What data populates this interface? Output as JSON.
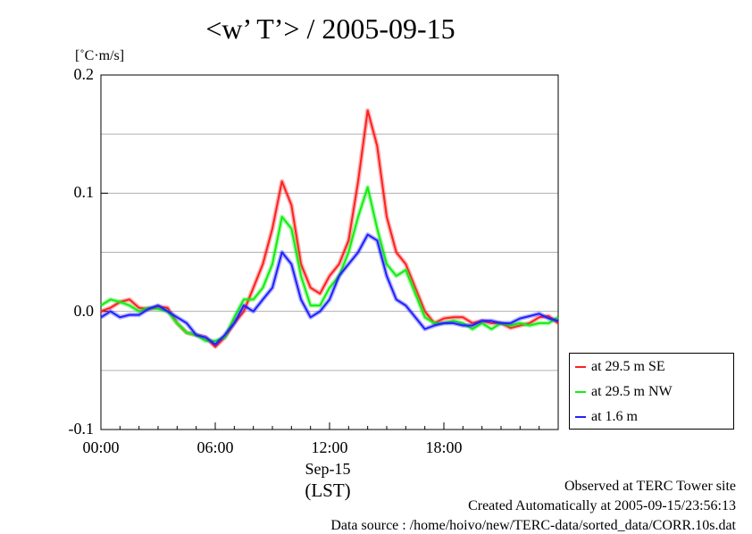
{
  "chart_data": {
    "type": "line",
    "title": "<w’ T’> / 2005-09-15",
    "ylabel": "[˚C·m/s]",
    "xlabel": "(LST)",
    "x_sublabel": "Sep-15",
    "x_range": [
      0,
      24
    ],
    "ylim": [
      -0.1,
      0.2
    ],
    "grid": true,
    "legend_position": "right-bottom",
    "y_ticks": [
      {
        "value": 0.2,
        "label": "0.2"
      },
      {
        "value": 0.1,
        "label": "0.1"
      },
      {
        "value": 0.0,
        "label": "0.0"
      },
      {
        "value": -0.1,
        "label": "-0.1"
      }
    ],
    "x_ticks": [
      {
        "value": 0,
        "label": "00:00"
      },
      {
        "value": 6,
        "label": "06:00"
      },
      {
        "value": 12,
        "label": "12:00"
      },
      {
        "value": 18,
        "label": "18:00"
      }
    ],
    "x": [
      0,
      0.5,
      1,
      1.5,
      2,
      2.5,
      3,
      3.5,
      4,
      4.5,
      5,
      5.5,
      6,
      6.5,
      7,
      7.5,
      8,
      8.5,
      9,
      9.5,
      10,
      10.5,
      11,
      11.5,
      12,
      12.5,
      13,
      13.5,
      14,
      14.5,
      15,
      15.5,
      16,
      16.5,
      17,
      17.5,
      18,
      18.5,
      19,
      19.5,
      20,
      20.5,
      21,
      21.5,
      22,
      22.5,
      23,
      23.5,
      24
    ],
    "series": [
      {
        "name": "at 29.5 m SE",
        "color": "#ff2020",
        "values": [
          0.0,
          0.003,
          0.008,
          0.01,
          0.003,
          0.002,
          0.004,
          0.003,
          -0.01,
          -0.018,
          -0.02,
          -0.022,
          -0.03,
          -0.022,
          -0.01,
          0.0,
          0.02,
          0.04,
          0.07,
          0.11,
          0.09,
          0.04,
          0.02,
          0.015,
          0.03,
          0.04,
          0.06,
          0.11,
          0.17,
          0.14,
          0.08,
          0.05,
          0.04,
          0.02,
          0.0,
          -0.01,
          -0.006,
          -0.005,
          -0.005,
          -0.01,
          -0.008,
          -0.01,
          -0.01,
          -0.014,
          -0.012,
          -0.01,
          -0.005,
          -0.004,
          -0.01
        ]
      },
      {
        "name": "at 29.5 m NW",
        "color": "#10ee10",
        "values": [
          0.005,
          0.01,
          0.008,
          0.005,
          0.0,
          0.003,
          0.002,
          0.0,
          -0.01,
          -0.018,
          -0.02,
          -0.025,
          -0.025,
          -0.022,
          -0.005,
          0.01,
          0.01,
          0.02,
          0.04,
          0.08,
          0.07,
          0.03,
          0.005,
          0.005,
          0.02,
          0.03,
          0.05,
          0.08,
          0.105,
          0.07,
          0.04,
          0.03,
          0.035,
          0.015,
          -0.005,
          -0.01,
          -0.01,
          -0.008,
          -0.01,
          -0.015,
          -0.01,
          -0.015,
          -0.01,
          -0.012,
          -0.01,
          -0.012,
          -0.01,
          -0.01,
          -0.005
        ]
      },
      {
        "name": "at 1.6 m",
        "color": "#2020ff",
        "values": [
          -0.005,
          0.0,
          -0.005,
          -0.003,
          -0.003,
          0.002,
          0.005,
          0.0,
          -0.005,
          -0.01,
          -0.02,
          -0.022,
          -0.028,
          -0.02,
          -0.01,
          0.005,
          0.0,
          0.01,
          0.02,
          0.05,
          0.04,
          0.01,
          -0.005,
          0.0,
          0.01,
          0.03,
          0.04,
          0.05,
          0.065,
          0.06,
          0.03,
          0.01,
          0.005,
          -0.005,
          -0.015,
          -0.012,
          -0.01,
          -0.01,
          -0.012,
          -0.012,
          -0.008,
          -0.008,
          -0.01,
          -0.01,
          -0.006,
          -0.004,
          -0.002,
          -0.006,
          -0.008
        ]
      }
    ]
  },
  "footer": {
    "line1": "Observed at TERC Tower site",
    "line2": "Created Automatically at 2005-09-15/23:56:13",
    "line3": "Data source : /home/hoivo/new/TERC-data/sorted_data/CORR.10s.dat"
  }
}
